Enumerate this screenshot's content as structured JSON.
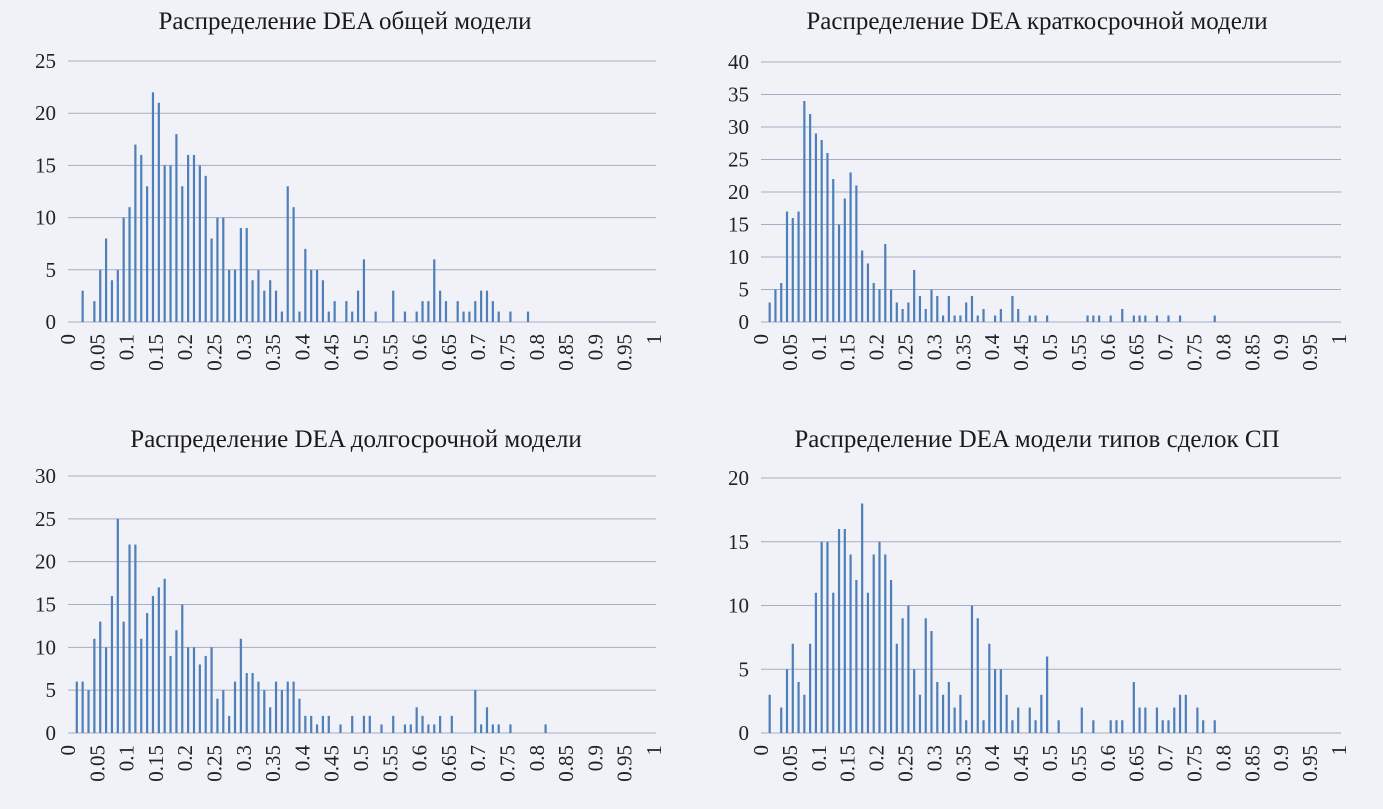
{
  "chart_data": [
    {
      "type": "bar",
      "title": "Распределение DEA общей модели",
      "xlabel": "",
      "ylabel": "",
      "ylim": [
        0,
        25
      ],
      "yticks": [
        0,
        5,
        10,
        15,
        20,
        25
      ],
      "xlim": [
        0,
        1
      ],
      "xticks": [
        "0",
        "0.05",
        "0.1",
        "0.15",
        "0.2",
        "0.25",
        "0.3",
        "0.35",
        "0.4",
        "0.45",
        "0.5",
        "0.55",
        "0.6",
        "0.65",
        "0.7",
        "0.75",
        "0.8",
        "0.85",
        "0.9",
        "0.95",
        "1"
      ],
      "bin_width": 0.01,
      "grid": true,
      "color": "#4f7fba",
      "values": [
        0,
        0,
        3,
        0,
        2,
        5,
        8,
        4,
        5,
        10,
        11,
        17,
        16,
        13,
        22,
        21,
        15,
        15,
        18,
        13,
        16,
        16,
        15,
        14,
        8,
        10,
        10,
        5,
        5,
        9,
        9,
        4,
        5,
        3,
        4,
        3,
        1,
        13,
        11,
        1,
        7,
        5,
        5,
        4,
        1,
        2,
        0,
        2,
        1,
        3,
        6,
        0,
        1,
        0,
        0,
        3,
        0,
        1,
        0,
        1,
        2,
        2,
        6,
        3,
        2,
        0,
        2,
        1,
        1,
        2,
        3,
        3,
        2,
        1,
        0,
        1,
        0,
        0,
        1,
        0,
        0,
        0,
        0,
        0,
        0,
        0,
        0,
        0,
        0,
        0,
        0,
        0,
        0,
        0,
        0,
        0,
        0,
        0,
        0,
        0
      ]
    },
    {
      "type": "bar",
      "title": "Распределение DEA краткосрочной модели",
      "xlabel": "",
      "ylabel": "",
      "ylim": [
        0,
        40
      ],
      "yticks": [
        0,
        5,
        10,
        15,
        20,
        25,
        30,
        35,
        40
      ],
      "xlim": [
        0,
        1
      ],
      "xticks": [
        "0",
        "0.05",
        "0.1",
        "0.15",
        "0.2",
        "0.25",
        "0.3",
        "0.35",
        "0.4",
        "0.45",
        "0.5",
        "0.55",
        "0.6",
        "0.65",
        "0.7",
        "0.75",
        "0.8",
        "0.85",
        "0.9",
        "0.95",
        "1"
      ],
      "bin_width": 0.01,
      "grid": true,
      "color": "#4f7fba",
      "values": [
        0,
        3,
        5,
        6,
        17,
        16,
        17,
        34,
        32,
        29,
        28,
        26,
        22,
        15,
        19,
        23,
        21,
        11,
        9,
        6,
        5,
        12,
        5,
        3,
        2,
        3,
        8,
        4,
        2,
        5,
        4,
        1,
        4,
        1,
        1,
        3,
        4,
        1,
        2,
        0,
        1,
        2,
        0,
        4,
        2,
        0,
        1,
        1,
        0,
        1,
        0,
        0,
        0,
        0,
        0,
        0,
        1,
        1,
        1,
        0,
        1,
        0,
        2,
        0,
        1,
        1,
        1,
        0,
        1,
        0,
        1,
        0,
        1,
        0,
        0,
        0,
        0,
        0,
        1,
        0,
        0,
        0,
        0,
        0,
        0,
        0,
        0,
        0,
        0,
        0,
        0,
        0,
        0,
        0,
        0,
        0,
        0,
        0,
        0,
        0
      ]
    },
    {
      "type": "bar",
      "title": "Распределение DEA долгосрочной модели",
      "xlabel": "",
      "ylabel": "",
      "ylim": [
        0,
        30
      ],
      "yticks": [
        0,
        5,
        10,
        15,
        20,
        25,
        30
      ],
      "xlim": [
        0,
        1
      ],
      "xticks": [
        "0",
        "0.05",
        "0.1",
        "0.15",
        "0.2",
        "0.25",
        "0.3",
        "0.35",
        "0.4",
        "0.45",
        "0.5",
        "0.55",
        "0.6",
        "0.65",
        "0.7",
        "0.75",
        "0.8",
        "0.85",
        "0.9",
        "0.95",
        "1"
      ],
      "bin_width": 0.01,
      "grid": true,
      "color": "#4f7fba",
      "values": [
        0,
        6,
        6,
        5,
        11,
        13,
        10,
        16,
        25,
        13,
        22,
        22,
        11,
        14,
        16,
        17,
        18,
        9,
        12,
        15,
        10,
        10,
        8,
        9,
        10,
        4,
        5,
        2,
        6,
        11,
        7,
        7,
        6,
        5,
        3,
        6,
        5,
        6,
        6,
        4,
        2,
        2,
        1,
        2,
        2,
        0,
        1,
        0,
        2,
        0,
        2,
        2,
        0,
        1,
        0,
        2,
        0,
        1,
        1,
        3,
        2,
        1,
        1,
        2,
        0,
        2,
        0,
        0,
        0,
        5,
        1,
        3,
        1,
        1,
        0,
        1,
        0,
        0,
        0,
        0,
        0,
        1,
        0,
        0,
        0,
        0,
        0,
        0,
        0,
        0,
        0,
        0,
        0,
        0,
        0,
        0,
        0,
        0,
        0,
        0
      ]
    },
    {
      "type": "bar",
      "title": "Распределение DEA модели типов сделок СП",
      "xlabel": "",
      "ylabel": "",
      "ylim": [
        0,
        20
      ],
      "yticks": [
        0,
        5,
        10,
        15,
        20
      ],
      "xlim": [
        0,
        1
      ],
      "xticks": [
        "0",
        "0.05",
        "0.1",
        "0.15",
        "0.2",
        "0.25",
        "0.3",
        "0.35",
        "0.4",
        "0.45",
        "0.5",
        "0.55",
        "0.6",
        "0.65",
        "0.7",
        "0.75",
        "0.8",
        "0.85",
        "0.9",
        "0.95",
        "1"
      ],
      "bin_width": 0.01,
      "grid": true,
      "color": "#4f7fba",
      "values": [
        0,
        3,
        0,
        2,
        5,
        7,
        4,
        3,
        7,
        11,
        15,
        15,
        11,
        16,
        16,
        14,
        12,
        18,
        11,
        14,
        15,
        14,
        12,
        7,
        9,
        10,
        5,
        3,
        9,
        8,
        4,
        3,
        4,
        2,
        3,
        1,
        10,
        9,
        1,
        7,
        5,
        5,
        3,
        1,
        2,
        0,
        2,
        1,
        3,
        6,
        0,
        1,
        0,
        0,
        0,
        2,
        0,
        1,
        0,
        0,
        1,
        1,
        1,
        0,
        4,
        2,
        2,
        0,
        2,
        1,
        1,
        2,
        3,
        3,
        0,
        2,
        1,
        0,
        1,
        0,
        0,
        0,
        0,
        0,
        0,
        0,
        0,
        0,
        0,
        0,
        0,
        0,
        0,
        0,
        0,
        0,
        0,
        0,
        0,
        0
      ]
    }
  ]
}
